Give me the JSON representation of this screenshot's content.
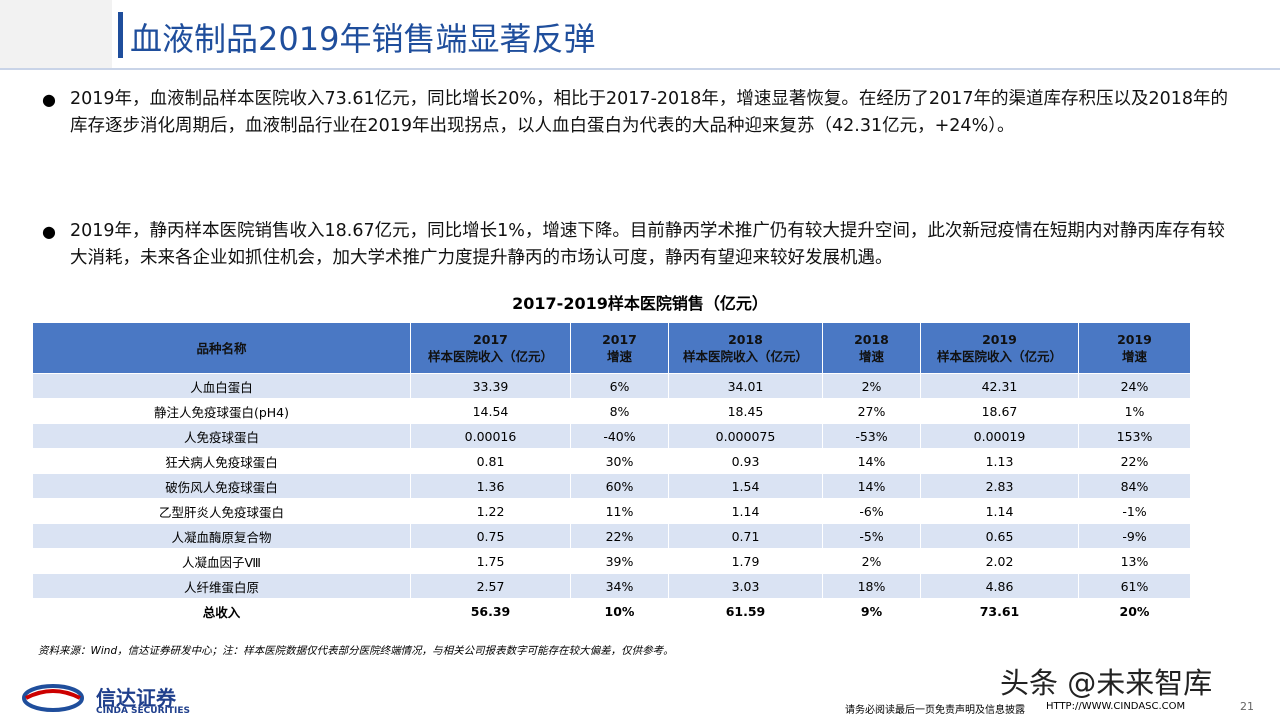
{
  "header": {
    "title": "血液制品2019年销售端显著反弹"
  },
  "bullets": [
    "2019年，血液制品样本医院收入73.61亿元，同比增长20%，相比于2017-2018年，增速显著恢复。在经历了2017年的渠道库存积压以及2018年的库存逐步消化周期后，血液制品行业在2019年出现拐点，以人血白蛋白为代表的大品种迎来复苏（42.31亿元，+24%）。",
    "2019年，静丙样本医院销售收入18.67亿元，同比增长1%，增速下降。目前静丙学术推广仍有较大提升空间，此次新冠疫情在短期内对静丙库存有较大消耗，未来各企业如抓住机会，加大学术推广力度提升静丙的市场认可度，静丙有望迎来较好发展机遇。"
  ],
  "table": {
    "title": "2017-2019样本医院销售（亿元）",
    "columns": [
      [
        "品种名称"
      ],
      [
        "2017",
        "样本医院收入（亿元）"
      ],
      [
        "2017",
        "增速"
      ],
      [
        "2018",
        "样本医院收入（亿元）"
      ],
      [
        "2018",
        "增速"
      ],
      [
        "2019",
        "样本医院收入（亿元）"
      ],
      [
        "2019",
        "增速"
      ]
    ],
    "rows": [
      [
        "人血白蛋白",
        "33.39",
        "6%",
        "34.01",
        "2%",
        "42.31",
        "24%"
      ],
      [
        "静注人免疫球蛋白(pH4)",
        "14.54",
        "8%",
        "18.45",
        "27%",
        "18.67",
        "1%"
      ],
      [
        "人免疫球蛋白",
        "0.00016",
        "-40%",
        "0.000075",
        "-53%",
        "0.00019",
        "153%"
      ],
      [
        "狂犬病人免疫球蛋白",
        "0.81",
        "30%",
        "0.93",
        "14%",
        "1.13",
        "22%"
      ],
      [
        "破伤风人免疫球蛋白",
        "1.36",
        "60%",
        "1.54",
        "14%",
        "2.83",
        "84%"
      ],
      [
        "乙型肝炎人免疫球蛋白",
        "1.22",
        "11%",
        "1.14",
        "-6%",
        "1.14",
        "-1%"
      ],
      [
        "人凝血酶原复合物",
        "0.75",
        "22%",
        "0.71",
        "-5%",
        "0.65",
        "-9%"
      ],
      [
        "人凝血因子Ⅷ",
        "1.75",
        "39%",
        "1.79",
        "2%",
        "2.02",
        "13%"
      ],
      [
        "人纤维蛋白原",
        "2.57",
        "34%",
        "3.03",
        "18%",
        "4.86",
        "61%"
      ],
      [
        "总收入",
        "56.39",
        "10%",
        "61.59",
        "9%",
        "73.61",
        "20%"
      ]
    ]
  },
  "source": "资料来源：Wind，信达证券研发中心；注：样本医院数据仅代表部分医院终端情况，与相关公司报表数字可能存在较大偏差，仅供参考。",
  "logo": {
    "name": "信达证券",
    "english": "CINDA SECURITIES"
  },
  "watermark": "头条 @未来智库",
  "footer": {
    "disclaimer": "请务必阅读最后一页免责声明及信息披露",
    "url": "HTTP://WWW.CINDASC.COM",
    "page": "21"
  }
}
